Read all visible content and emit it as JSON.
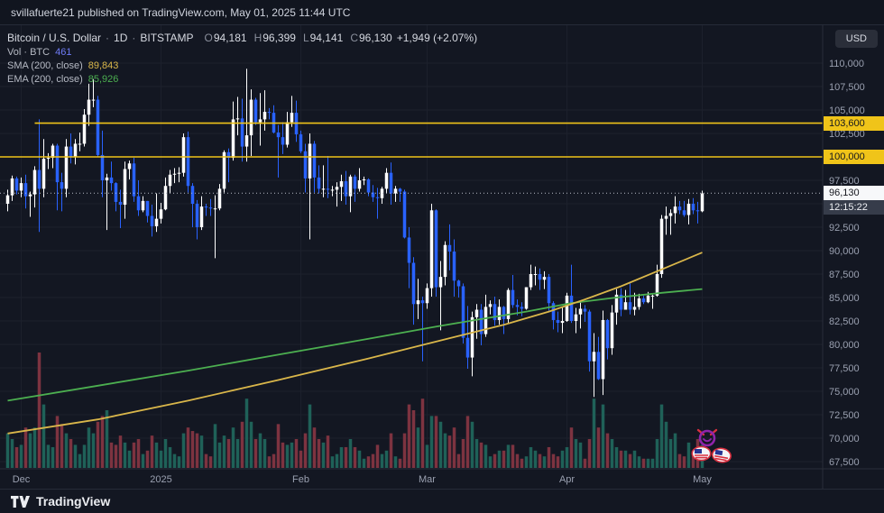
{
  "topbar": {
    "text": "svillafuerte21 published on TradingView.com, May 01, 2025 11:44 UTC"
  },
  "legend": {
    "symbol": "Bitcoin / U.S. Dollar",
    "sep": "·",
    "interval": "1D",
    "exchange": "BITSTAMP",
    "ohlc": {
      "o_label": "O",
      "o": "94,181",
      "h_label": "H",
      "h": "96,399",
      "l_label": "L",
      "l": "94,141",
      "c_label": "C",
      "c": "96,130",
      "change": "+1,949 (+2.07%)"
    },
    "volume": {
      "label": "Vol · BTC",
      "value": "461"
    },
    "sma": {
      "label": "SMA (200, close)",
      "value": "89,843"
    },
    "ema": {
      "label": "EMA (200, close)",
      "value": "85,926"
    }
  },
  "price_axis": {
    "currency_button": "USD",
    "ticks": [
      {
        "label": "110,000",
        "price": 110
      },
      {
        "label": "107,500",
        "price": 107.5
      },
      {
        "label": "105,000",
        "price": 105
      },
      {
        "label": "102,500",
        "price": 102.5
      },
      {
        "label": "97,500",
        "price": 97.5
      },
      {
        "label": "92,500",
        "price": 92.5
      },
      {
        "label": "90,000",
        "price": 90
      },
      {
        "label": "87,500",
        "price": 87.5
      },
      {
        "label": "85,000",
        "price": 85
      },
      {
        "label": "82,500",
        "price": 82.5
      },
      {
        "label": "80,000",
        "price": 80
      },
      {
        "label": "77,500",
        "price": 77.5
      },
      {
        "label": "75,000",
        "price": 75
      },
      {
        "label": "72,500",
        "price": 72.5
      },
      {
        "label": "70,000",
        "price": 70
      },
      {
        "label": "67,500",
        "price": 67.5
      }
    ]
  },
  "price_lines": [
    {
      "label": "103,600",
      "price": 103.6,
      "start_index": 6
    },
    {
      "label": "100,000",
      "price": 100.0,
      "start_index": -1
    }
  ],
  "last_price": {
    "label": "96,130",
    "countdown": "12:15:22",
    "price": 96.13
  },
  "footer": {
    "brand": "TradingView"
  },
  "stickers": [
    {
      "name": "devil-scribble-sticker"
    },
    {
      "name": "us-flag-sticker"
    },
    {
      "name": "us-flag-sticker"
    }
  ],
  "colors": {
    "background": "#131722",
    "grid": "#1c202c",
    "up": "#ffffff",
    "down": "#2962ff",
    "vol_up": "#1f6158",
    "vol_down": "#7d3340",
    "sma": "#d9b64a",
    "ema": "#4caf50",
    "ray": "#f0c419",
    "axis_text": "#9aa0b0",
    "last_price_line": "#b8bcc6"
  },
  "chart_data": {
    "type": "candlestick",
    "title": "Bitcoin / U.S. Dollar · 1D · BITSTAMP",
    "price_units": "USD thousands",
    "x_range": "daily candles, late Nov 2024 through May 1 2025",
    "ylim": [
      66.0,
      112.0
    ],
    "candle_format": [
      "open",
      "high",
      "low",
      "close",
      "volume_relative_0_100"
    ],
    "candles": [
      [
        95.0,
        96.5,
        94.2,
        95.9,
        30
      ],
      [
        95.9,
        98.0,
        95.3,
        97.7,
        25
      ],
      [
        97.7,
        97.9,
        96.0,
        96.4,
        18
      ],
      [
        96.4,
        97.8,
        95.7,
        97.2,
        20
      ],
      [
        97.2,
        98.1,
        94.5,
        95.8,
        35
      ],
      [
        95.8,
        96.3,
        93.6,
        96.0,
        30
      ],
      [
        96.0,
        99.0,
        94.6,
        98.6,
        35
      ],
      [
        98.6,
        104.0,
        92.0,
        96.6,
        100
      ],
      [
        96.6,
        101.9,
        95.7,
        99.8,
        55
      ],
      [
        99.8,
        100.4,
        98.7,
        99.9,
        20
      ],
      [
        99.9,
        101.4,
        98.8,
        101.2,
        18
      ],
      [
        101.2,
        101.4,
        94.3,
        97.3,
        45
      ],
      [
        97.3,
        98.3,
        94.2,
        96.6,
        38
      ],
      [
        96.6,
        101.9,
        95.7,
        101.1,
        30
      ],
      [
        101.1,
        102.5,
        99.3,
        100.0,
        25
      ],
      [
        100.0,
        101.9,
        99.2,
        101.4,
        20
      ],
      [
        101.4,
        102.6,
        100.6,
        101.4,
        12
      ],
      [
        101.4,
        105.1,
        101.1,
        104.5,
        20
      ],
      [
        104.5,
        107.8,
        103.3,
        106.1,
        35
      ],
      [
        106.1,
        108.3,
        105.3,
        106.1,
        30
      ],
      [
        106.1,
        106.5,
        100.0,
        100.2,
        40
      ],
      [
        100.2,
        102.8,
        95.7,
        97.5,
        45
      ],
      [
        97.5,
        98.2,
        92.2,
        97.8,
        50
      ],
      [
        97.8,
        99.5,
        96.4,
        97.2,
        22
      ],
      [
        97.2,
        97.3,
        94.2,
        95.2,
        20
      ],
      [
        95.2,
        96.5,
        92.4,
        94.9,
        28
      ],
      [
        94.9,
        99.5,
        93.4,
        98.7,
        22
      ],
      [
        98.7,
        99.6,
        97.6,
        99.3,
        15
      ],
      [
        99.3,
        99.9,
        95.2,
        95.8,
        22
      ],
      [
        95.8,
        97.5,
        93.7,
        94.3,
        25
      ],
      [
        94.3,
        95.8,
        94.1,
        95.3,
        12
      ],
      [
        95.3,
        95.3,
        93.0,
        93.7,
        15
      ],
      [
        93.7,
        94.9,
        91.5,
        92.6,
        28
      ],
      [
        92.6,
        96.1,
        92.0,
        93.4,
        22
      ],
      [
        93.4,
        95.1,
        92.9,
        94.4,
        15
      ],
      [
        94.4,
        97.8,
        94.3,
        96.9,
        25
      ],
      [
        96.9,
        98.6,
        96.1,
        98.1,
        18
      ],
      [
        98.1,
        98.8,
        97.2,
        98.2,
        12
      ],
      [
        98.2,
        98.9,
        97.3,
        98.3,
        10
      ],
      [
        98.3,
        102.5,
        97.9,
        102.1,
        30
      ],
      [
        102.1,
        102.7,
        96.2,
        96.9,
        35
      ],
      [
        96.9,
        97.2,
        92.5,
        95.0,
        32
      ],
      [
        95.0,
        95.4,
        91.2,
        92.5,
        30
      ],
      [
        92.5,
        95.8,
        92.2,
        94.7,
        28
      ],
      [
        94.7,
        95.0,
        93.7,
        94.6,
        12
      ],
      [
        94.6,
        95.5,
        93.7,
        94.5,
        10
      ],
      [
        94.5,
        95.9,
        89.2,
        94.5,
        38
      ],
      [
        94.5,
        97.1,
        94.3,
        96.6,
        22
      ],
      [
        96.6,
        100.7,
        96.2,
        100.5,
        28
      ],
      [
        100.5,
        100.9,
        97.3,
        99.9,
        25
      ],
      [
        99.9,
        105.9,
        99.6,
        104.0,
        35
      ],
      [
        104.0,
        106.4,
        102.3,
        104.1,
        25
      ],
      [
        104.1,
        106.2,
        99.5,
        101.1,
        40
      ],
      [
        101.1,
        109.4,
        99.5,
        102.3,
        60
      ],
      [
        102.3,
        107.2,
        100.1,
        106.1,
        40
      ],
      [
        106.1,
        106.3,
        103.4,
        103.7,
        25
      ],
      [
        103.7,
        106.8,
        101.2,
        104.0,
        30
      ],
      [
        104.0,
        107.1,
        102.8,
        104.8,
        25
      ],
      [
        104.8,
        105.2,
        104.0,
        104.7,
        10
      ],
      [
        104.7,
        105.5,
        102.5,
        102.6,
        12
      ],
      [
        102.6,
        103.4,
        97.8,
        102.1,
        38
      ],
      [
        102.1,
        103.7,
        100.3,
        101.3,
        22
      ],
      [
        101.3,
        104.8,
        101.0,
        103.7,
        20
      ],
      [
        103.7,
        106.5,
        103.2,
        104.7,
        22
      ],
      [
        104.7,
        106.0,
        101.6,
        102.4,
        25
      ],
      [
        102.4,
        102.8,
        100.4,
        100.6,
        15
      ],
      [
        100.6,
        101.4,
        96.2,
        97.7,
        30
      ],
      [
        97.7,
        102.5,
        91.2,
        101.4,
        55
      ],
      [
        101.4,
        101.7,
        96.2,
        97.8,
        35
      ],
      [
        97.8,
        99.1,
        96.1,
        96.6,
        25
      ],
      [
        96.6,
        99.1,
        95.7,
        96.6,
        22
      ],
      [
        96.6,
        100.1,
        95.6,
        96.5,
        28
      ],
      [
        96.5,
        96.9,
        95.8,
        96.5,
        10
      ],
      [
        96.5,
        97.3,
        94.7,
        96.8,
        12
      ],
      [
        96.8,
        98.1,
        95.3,
        97.4,
        18
      ],
      [
        97.4,
        98.5,
        94.9,
        95.8,
        18
      ],
      [
        95.8,
        98.1,
        94.1,
        97.9,
        25
      ],
      [
        97.9,
        98.1,
        95.2,
        96.6,
        18
      ],
      [
        96.6,
        98.8,
        96.3,
        97.5,
        15
      ],
      [
        97.5,
        97.9,
        97.0,
        97.6,
        8
      ],
      [
        97.6,
        97.7,
        95.8,
        96.2,
        10
      ],
      [
        96.2,
        97.0,
        95.2,
        95.7,
        12
      ],
      [
        95.7,
        96.7,
        93.4,
        95.6,
        20
      ],
      [
        95.6,
        96.8,
        95.0,
        96.6,
        12
      ],
      [
        96.6,
        98.8,
        96.1,
        98.3,
        15
      ],
      [
        98.3,
        99.4,
        94.9,
        96.1,
        30
      ],
      [
        96.1,
        96.9,
        95.2,
        96.6,
        10
      ],
      [
        96.6,
        96.7,
        95.2,
        96.3,
        8
      ],
      [
        96.3,
        96.5,
        91.3,
        91.4,
        30
      ],
      [
        91.4,
        92.5,
        86.0,
        88.7,
        55
      ],
      [
        88.7,
        89.3,
        82.1,
        84.3,
        50
      ],
      [
        84.3,
        87.0,
        82.7,
        84.7,
        35
      ],
      [
        84.7,
        85.1,
        78.2,
        84.4,
        60
      ],
      [
        84.4,
        86.5,
        83.8,
        86.0,
        20
      ],
      [
        86.0,
        95.0,
        85.1,
        94.3,
        45
      ],
      [
        94.3,
        94.4,
        85.1,
        86.1,
        45
      ],
      [
        86.1,
        88.9,
        81.5,
        87.2,
        40
      ],
      [
        87.2,
        91.0,
        86.3,
        90.6,
        30
      ],
      [
        90.6,
        92.8,
        87.9,
        89.9,
        28
      ],
      [
        89.9,
        91.2,
        85.1,
        86.8,
        35
      ],
      [
        86.8,
        86.9,
        85.0,
        86.2,
        12
      ],
      [
        86.2,
        86.5,
        80.1,
        80.7,
        25
      ],
      [
        80.7,
        84.1,
        77.4,
        78.6,
        45
      ],
      [
        78.6,
        83.5,
        76.6,
        82.9,
        40
      ],
      [
        82.9,
        84.3,
        80.6,
        83.7,
        25
      ],
      [
        83.7,
        84.3,
        79.9,
        81.1,
        22
      ],
      [
        81.1,
        85.3,
        80.8,
        84.0,
        20
      ],
      [
        84.0,
        84.7,
        83.2,
        84.3,
        10
      ],
      [
        84.3,
        85.1,
        82.0,
        82.6,
        12
      ],
      [
        82.6,
        84.8,
        82.1,
        84.0,
        15
      ],
      [
        84.0,
        84.1,
        81.1,
        82.7,
        15
      ],
      [
        82.7,
        86.0,
        82.3,
        85.8,
        20
      ],
      [
        85.8,
        87.4,
        83.9,
        84.2,
        20
      ],
      [
        84.2,
        84.8,
        83.1,
        84.0,
        12
      ],
      [
        84.0,
        84.5,
        83.0,
        83.8,
        8
      ],
      [
        83.8,
        86.1,
        83.7,
        86.1,
        10
      ],
      [
        86.1,
        88.5,
        85.8,
        87.5,
        18
      ],
      [
        87.5,
        88.3,
        86.3,
        87.5,
        15
      ],
      [
        87.5,
        88.1,
        85.8,
        86.9,
        12
      ],
      [
        86.9,
        87.8,
        85.9,
        87.2,
        10
      ],
      [
        87.2,
        87.5,
        83.6,
        84.4,
        18
      ],
      [
        84.4,
        84.6,
        81.6,
        82.6,
        12
      ],
      [
        82.6,
        83.5,
        81.3,
        82.3,
        10
      ],
      [
        82.3,
        83.9,
        81.2,
        82.5,
        15
      ],
      [
        82.5,
        85.5,
        82.4,
        85.2,
        18
      ],
      [
        85.2,
        88.5,
        82.3,
        82.5,
        35
      ],
      [
        82.5,
        83.9,
        81.2,
        83.2,
        25
      ],
      [
        83.2,
        84.7,
        81.7,
        83.8,
        22
      ],
      [
        83.8,
        84.2,
        82.4,
        83.5,
        8
      ],
      [
        83.5,
        83.7,
        77.1,
        78.2,
        25
      ],
      [
        78.2,
        81.2,
        74.4,
        79.2,
        60
      ],
      [
        79.2,
        80.8,
        76.2,
        76.3,
        35
      ],
      [
        76.3,
        83.6,
        74.6,
        82.6,
        55
      ],
      [
        82.6,
        82.7,
        78.4,
        79.6,
        30
      ],
      [
        79.6,
        84.2,
        78.9,
        83.4,
        25
      ],
      [
        83.4,
        85.9,
        82.1,
        85.3,
        18
      ],
      [
        85.3,
        86.0,
        83.0,
        83.7,
        15
      ],
      [
        83.7,
        85.8,
        83.7,
        84.5,
        15
      ],
      [
        84.5,
        86.5,
        83.2,
        83.7,
        12
      ],
      [
        83.7,
        85.5,
        83.1,
        84.0,
        15
      ],
      [
        84.0,
        85.4,
        83.7,
        84.9,
        10
      ],
      [
        84.9,
        85.2,
        84.3,
        84.5,
        8
      ],
      [
        84.5,
        85.6,
        84.4,
        85.2,
        8
      ],
      [
        85.2,
        85.3,
        83.8,
        85.2,
        8
      ],
      [
        85.2,
        88.5,
        85.1,
        87.5,
        25
      ],
      [
        87.5,
        93.8,
        87.1,
        93.4,
        55
      ],
      [
        93.4,
        94.7,
        91.7,
        93.7,
        40
      ],
      [
        93.7,
        94.4,
        91.7,
        94.0,
        25
      ],
      [
        94.0,
        95.8,
        92.9,
        94.7,
        30
      ],
      [
        94.7,
        95.3,
        93.9,
        94.3,
        12
      ],
      [
        94.3,
        95.3,
        93.6,
        93.8,
        10
      ],
      [
        93.8,
        95.5,
        92.8,
        95.0,
        22
      ],
      [
        95.0,
        95.6,
        93.9,
        94.3,
        15
      ],
      [
        94.3,
        95.2,
        92.9,
        94.2,
        25
      ],
      [
        94.2,
        96.4,
        94.1,
        96.1,
        20
      ]
    ],
    "sma_points": [
      [
        0,
        70.5
      ],
      [
        20,
        72.0
      ],
      [
        40,
        74.0
      ],
      [
        60,
        76.2
      ],
      [
        80,
        78.5
      ],
      [
        100,
        80.9
      ],
      [
        110,
        82.1
      ],
      [
        120,
        83.5
      ],
      [
        128,
        84.8
      ],
      [
        136,
        86.2
      ],
      [
        145,
        88.0
      ],
      [
        154,
        89.8
      ]
    ],
    "ema_points": [
      [
        0,
        74.0
      ],
      [
        20,
        75.6
      ],
      [
        40,
        77.2
      ],
      [
        60,
        78.9
      ],
      [
        80,
        80.6
      ],
      [
        95,
        81.9
      ],
      [
        105,
        82.7
      ],
      [
        115,
        83.5
      ],
      [
        125,
        84.4
      ],
      [
        135,
        85.0
      ],
      [
        145,
        85.5
      ],
      [
        154,
        85.9
      ]
    ],
    "time_axis": {
      "labels": [
        {
          "text": "Dec",
          "index": 3
        },
        {
          "text": "2025",
          "index": 34
        },
        {
          "text": "Feb",
          "index": 65
        },
        {
          "text": "Mar",
          "index": 93
        },
        {
          "text": "Apr",
          "index": 124
        },
        {
          "text": "May",
          "index": 154
        }
      ]
    }
  }
}
